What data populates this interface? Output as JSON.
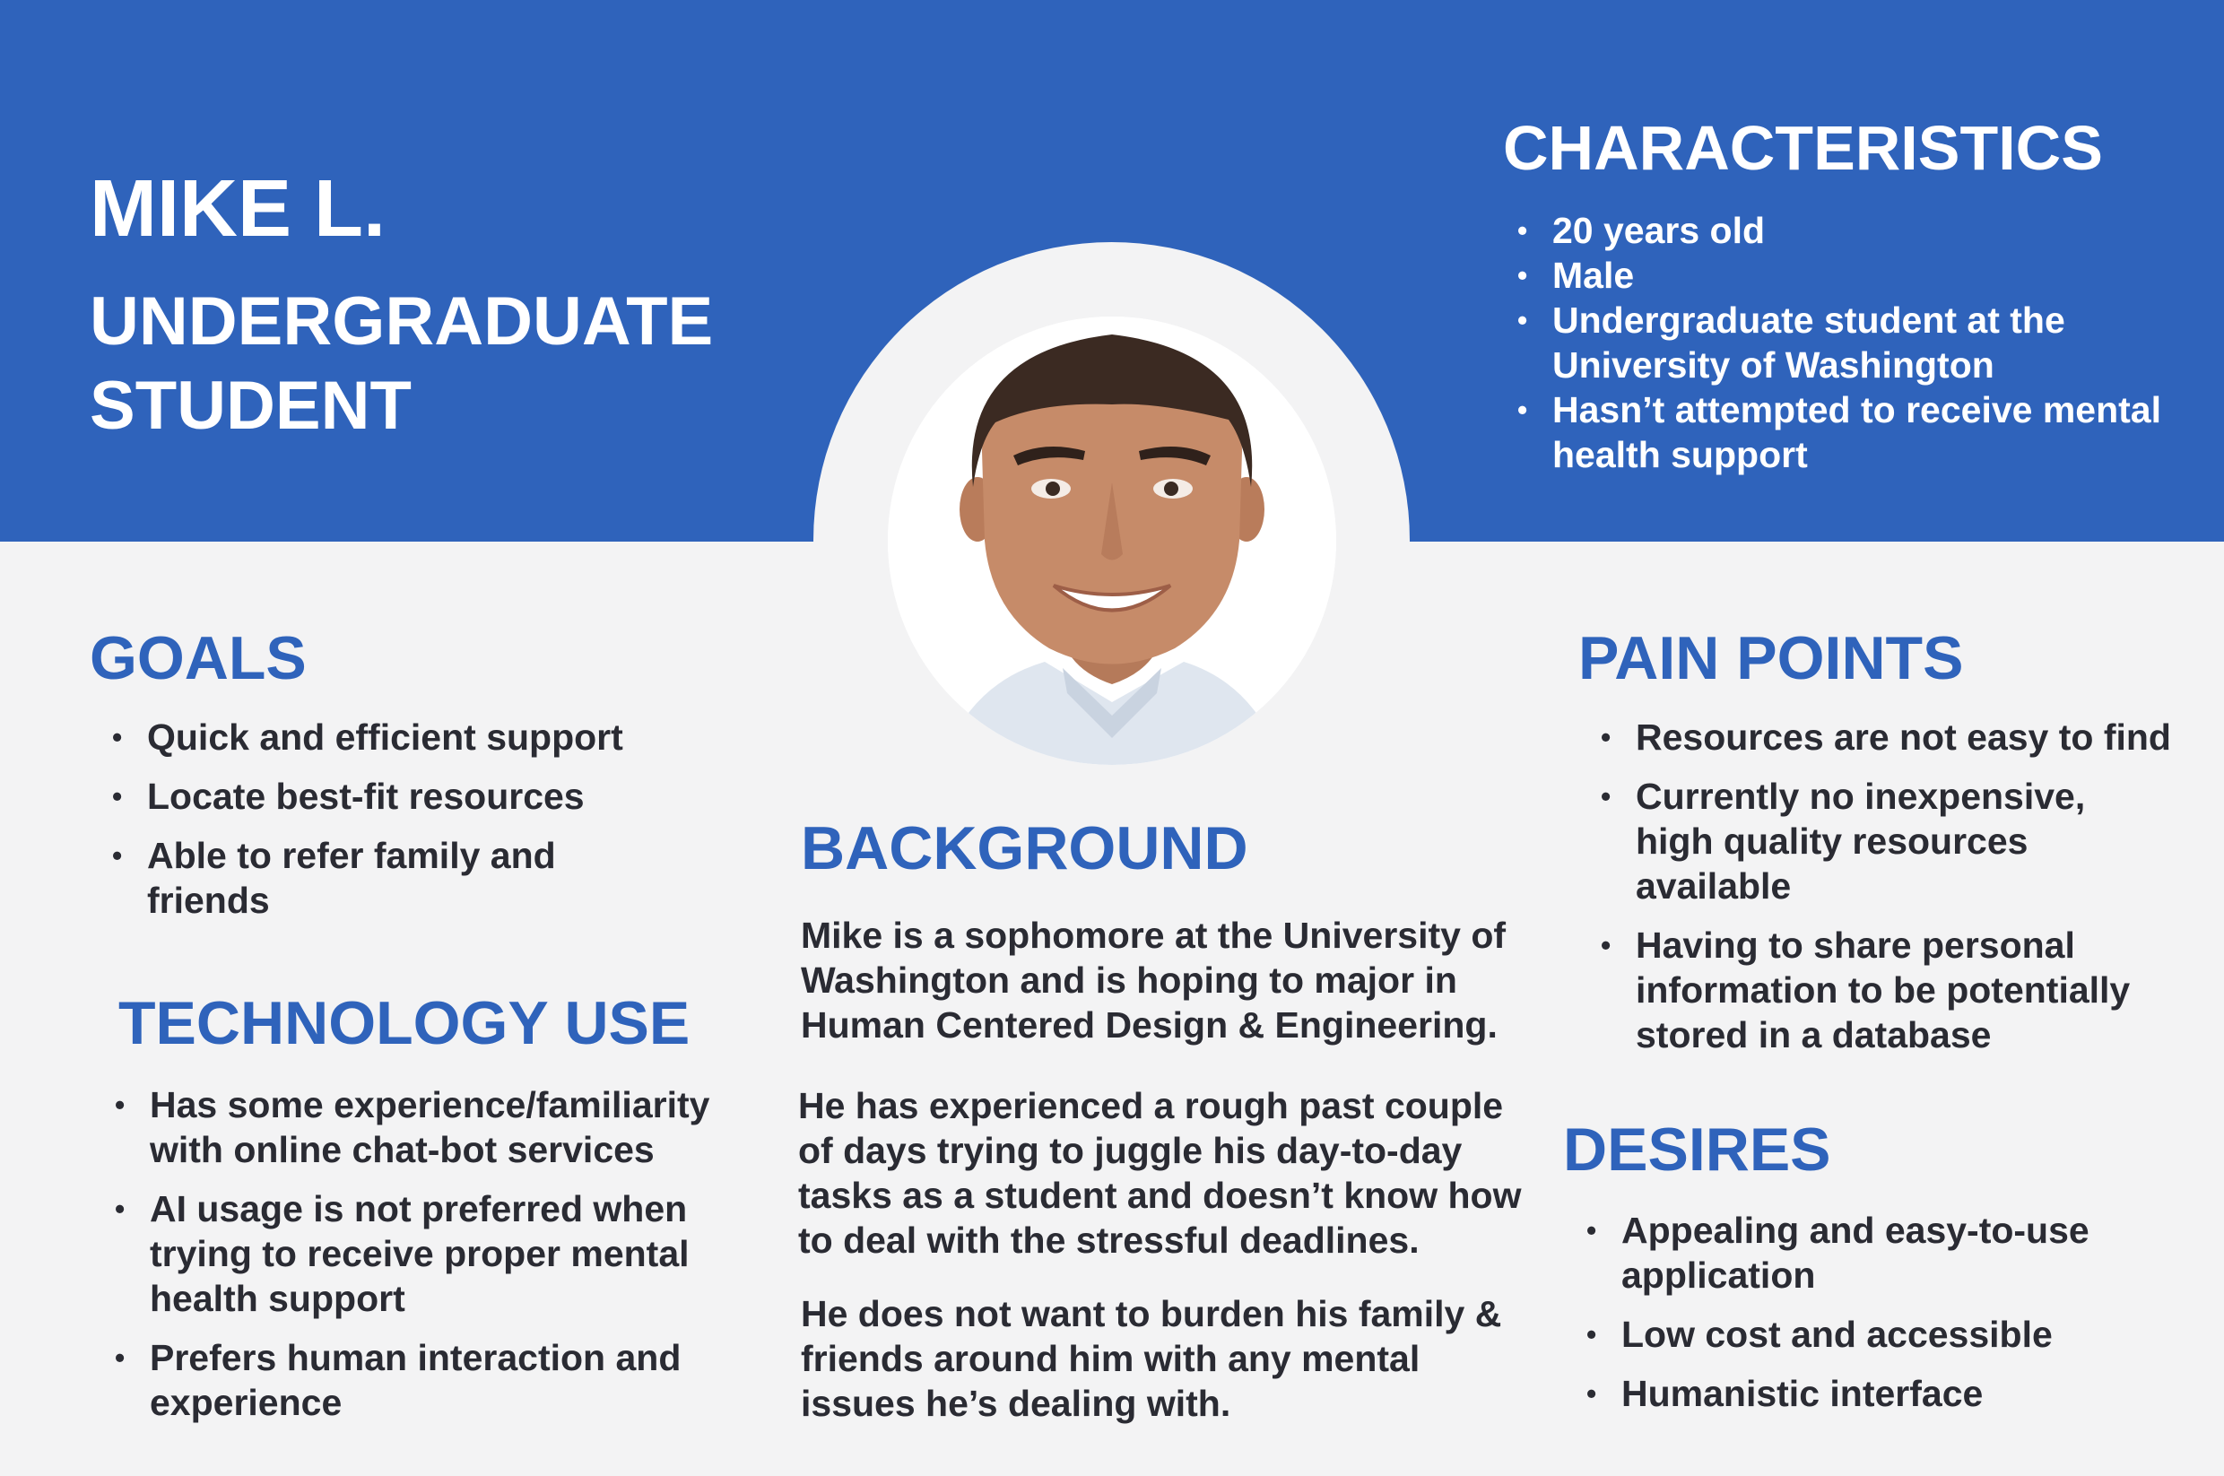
{
  "header": {
    "name": "MIKE L.",
    "role": "UNDERGRADUATE STUDENT"
  },
  "characteristics": {
    "title": "CHARACTERISTICS",
    "items": [
      "20 years old",
      "Male",
      "Undergraduate student at the University of Washington",
      "Hasn’t attempted to receive mental health support"
    ]
  },
  "goals": {
    "title": "GOALS",
    "items": [
      "Quick and efficient support",
      "Locate best-fit resources",
      "Able to refer family and friends"
    ]
  },
  "technology_use": {
    "title": "TECHNOLOGY USE",
    "items": [
      "Has some experience/familiarity with online chat-bot services",
      "AI usage is not preferred when trying to receive proper mental health support",
      "Prefers human interaction and experience"
    ]
  },
  "background": {
    "title": "BACKGROUND",
    "paragraphs": [
      "Mike is a sophomore at the University of Washington and is hoping to major in Human Centered Design & Engineering.",
      "He has experienced a rough past couple of days trying to juggle his day-to-day tasks as a student and doesn’t know how to deal with the stressful deadlines.",
      "He does not want to burden his family & friends around him with any mental issues he’s dealing with."
    ]
  },
  "pain_points": {
    "title": "PAIN POINTS",
    "items": [
      "Resources are not easy to find",
      "Currently no inexpensive, high quality resources available",
      "Having to share personal information to be potentially stored in a database"
    ]
  },
  "desires": {
    "title": "DESIRES",
    "items": [
      "Appealing and easy-to-use application",
      "Low cost and accessible",
      "Humanistic interface"
    ]
  },
  "colors": {
    "brand_blue": "#2f63bb",
    "background": "#f3f3f4",
    "text_dark": "#2a2b33"
  },
  "icons": {
    "portrait": "portrait-photo"
  }
}
